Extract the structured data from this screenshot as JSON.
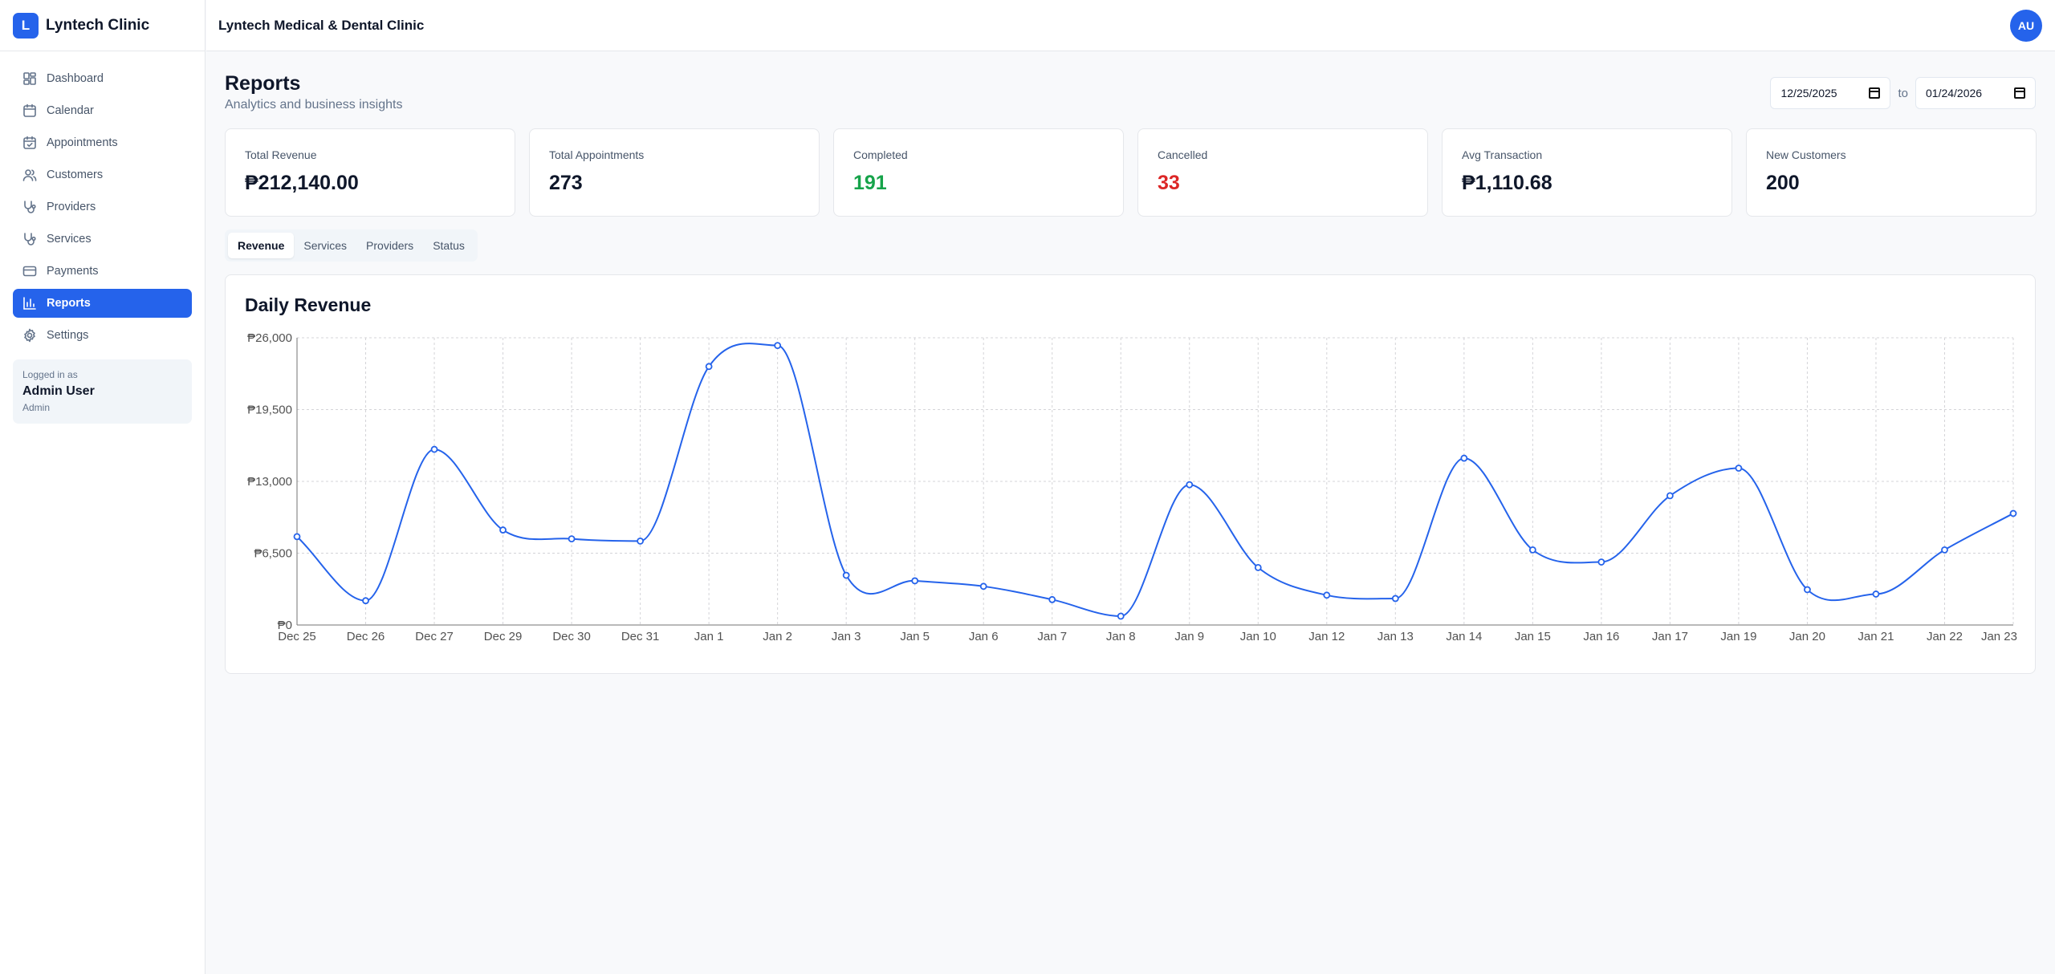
{
  "brand": {
    "logo_letter": "L",
    "name": "Lyntech Clinic",
    "accent": "#2563eb"
  },
  "header": {
    "title": "Lyntech Medical & Dental Clinic",
    "avatar_initials": "AU"
  },
  "sidebar": {
    "items": [
      {
        "label": "Dashboard",
        "icon": "dashboard-icon",
        "active": false
      },
      {
        "label": "Calendar",
        "icon": "calendar-icon",
        "active": false
      },
      {
        "label": "Appointments",
        "icon": "calendar-check-icon",
        "active": false
      },
      {
        "label": "Customers",
        "icon": "users-icon",
        "active": false
      },
      {
        "label": "Providers",
        "icon": "stethoscope-icon",
        "active": false
      },
      {
        "label": "Services",
        "icon": "stethoscope-icon",
        "active": false
      },
      {
        "label": "Payments",
        "icon": "credit-card-icon",
        "active": false
      },
      {
        "label": "Reports",
        "icon": "bar-chart-icon",
        "active": true
      },
      {
        "label": "Settings",
        "icon": "gear-icon",
        "active": false
      }
    ],
    "user": {
      "logged_in_label": "Logged in as",
      "name": "Admin User",
      "role": "Admin"
    }
  },
  "page": {
    "title": "Reports",
    "subtitle": "Analytics and business insights",
    "date_from": "12/25/2025",
    "date_to_label": "to",
    "date_to": "01/24/2026"
  },
  "stats": [
    {
      "label": "Total Revenue",
      "value": "₱212,140.00",
      "color": "#0f172a"
    },
    {
      "label": "Total Appointments",
      "value": "273",
      "color": "#0f172a"
    },
    {
      "label": "Completed",
      "value": "191",
      "color": "#16a34a"
    },
    {
      "label": "Cancelled",
      "value": "33",
      "color": "#dc2626"
    },
    {
      "label": "Avg Transaction",
      "value": "₱1,110.68",
      "color": "#0f172a"
    },
    {
      "label": "New Customers",
      "value": "200",
      "color": "#0f172a"
    }
  ],
  "tabs": [
    {
      "label": "Revenue",
      "active": true
    },
    {
      "label": "Services",
      "active": false
    },
    {
      "label": "Providers",
      "active": false
    },
    {
      "label": "Status",
      "active": false
    }
  ],
  "chart_data": {
    "type": "line",
    "title": "Daily Revenue",
    "xlabel": "",
    "ylabel": "",
    "categories": [
      "Dec 25",
      "Dec 26",
      "Dec 27",
      "Dec 29",
      "Dec 30",
      "Dec 31",
      "Jan 1",
      "Jan 2",
      "Jan 3",
      "Jan 5",
      "Jan 6",
      "Jan 7",
      "Jan 8",
      "Jan 9",
      "Jan 10",
      "Jan 12",
      "Jan 13",
      "Jan 14",
      "Jan 15",
      "Jan 16",
      "Jan 17",
      "Jan 19",
      "Jan 20",
      "Jan 21",
      "Jan 22",
      "Jan 23"
    ],
    "series": [
      {
        "values": [
          8000,
          2200,
          15900,
          8600,
          7800,
          7600,
          23400,
          25300,
          4500,
          4000,
          3500,
          2300,
          800,
          12700,
          5200,
          2700,
          2400,
          15100,
          6800,
          5700,
          11700,
          14200,
          3200,
          2800,
          6800,
          10100
        ],
        "color": "#2563eb"
      }
    ],
    "y_ticks": [
      "₱0",
      "₱6,500",
      "₱13,000",
      "₱19,500",
      "₱26,000"
    ],
    "ylim": [
      0,
      26000
    ],
    "grid": true,
    "grid_style": "dashed"
  }
}
